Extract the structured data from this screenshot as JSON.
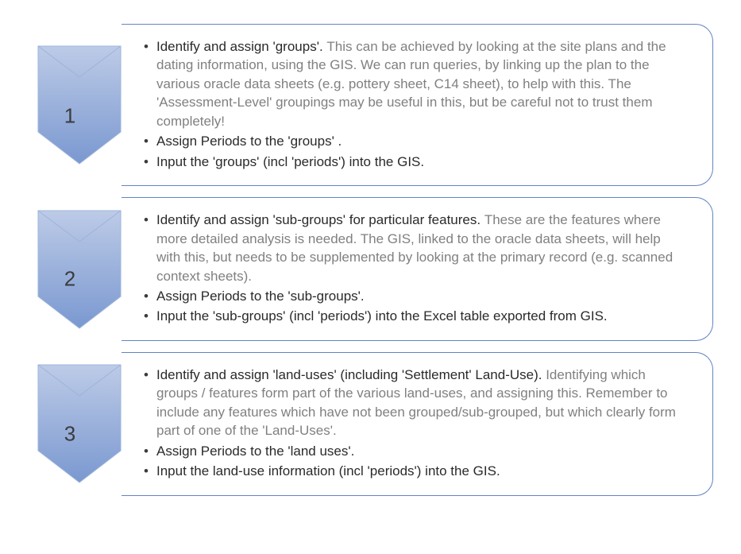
{
  "diagram": {
    "type": "infographic",
    "background_color": "#ffffff",
    "box_border_color": "#6384c5",
    "box_border_radius": 22,
    "chevron_gradient_top": "#bdcbe7",
    "chevron_gradient_bottom": "#7a98d0",
    "chevron_stroke": "#9db4db",
    "number_color": "#3b3b3b",
    "number_fontsize": 26,
    "body_fontsize": 17,
    "lead_text_color": "#2a2a2a",
    "rest_text_color": "#808080",
    "font_family": "Segoe UI"
  },
  "steps": [
    {
      "number": "1",
      "items": [
        {
          "lead": "Identify and assign 'groups'. ",
          "rest": "This can be achieved by looking at the site plans and the dating information, using the GIS. We can run queries, by linking up the plan to the various oracle data sheets (e.g. pottery sheet, C14 sheet), to help with this. The 'Assessment-Level' groupings may be useful in this, but be careful not to trust them completely!"
        },
        {
          "lead": "Assign Periods to the 'groups' .",
          "rest": ""
        },
        {
          "lead": "Input the 'groups' (incl 'periods') into the GIS.",
          "rest": ""
        }
      ]
    },
    {
      "number": "2",
      "items": [
        {
          "lead": "Identify and assign 'sub-groups' for particular features. ",
          "rest": "These are the features where more detailed analysis is needed. The GIS, linked to the oracle data sheets, will help with this, but needs to be supplemented by looking at the primary record (e.g. scanned context sheets)."
        },
        {
          "lead": "Assign Periods to the 'sub-groups'.",
          "rest": ""
        },
        {
          "lead": "Input the 'sub-groups' (incl 'periods') into the Excel table exported from GIS.",
          "rest": ""
        }
      ]
    },
    {
      "number": "3",
      "items": [
        {
          "lead": "Identify and assign 'land-uses' (including 'Settlement' Land-Use). ",
          "rest": "Identifying which groups / features form part of the various land-uses, and assigning this. Remember to include any features which have not been grouped/sub-grouped, but which clearly form part of one of the 'Land-Uses'."
        },
        {
          "lead": "Assign Periods to the 'land uses'.",
          "rest": ""
        },
        {
          "lead": "Input the land-use information (incl 'periods') into the GIS.",
          "rest": ""
        }
      ]
    }
  ]
}
